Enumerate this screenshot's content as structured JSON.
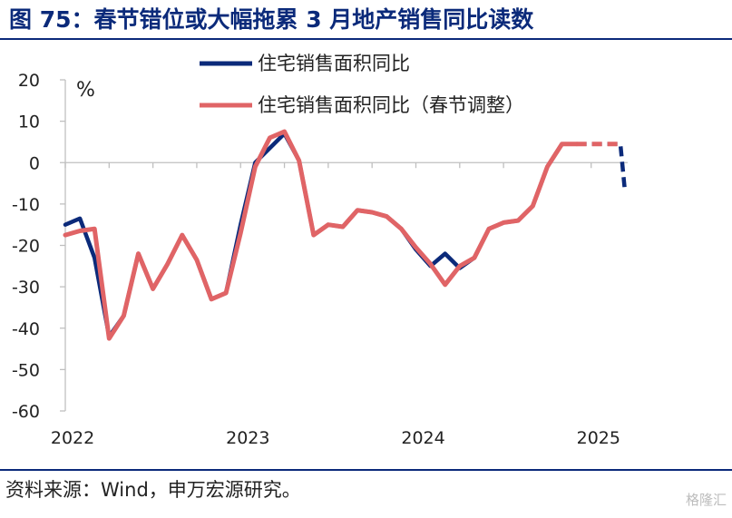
{
  "title": "图 75：春节错位或大幅拖累 3 月地产销售同比读数",
  "source": "资料来源：Wind，申万宏源研究。",
  "watermark": "格隆汇",
  "colors": {
    "title": "#0b2a7a",
    "series_raw": "#0b2a7a",
    "series_adjusted": "#e06466"
  },
  "chart_data": {
    "type": "line",
    "ylabel": "%",
    "ylim": [
      -60,
      20
    ],
    "yticks": [
      20,
      10,
      0,
      -10,
      -20,
      -30,
      -40,
      -50,
      -60
    ],
    "xlim": [
      0,
      38.5
    ],
    "xtick_labels": [
      {
        "label": "2022",
        "x": 0.5
      },
      {
        "label": "2023",
        "x": 12.5
      },
      {
        "label": "2024",
        "x": 24.5
      },
      {
        "label": "2025",
        "x": 36.5
      }
    ],
    "legend": [
      "住宅销售面积同比",
      "住宅销售面积同比（春节调整）"
    ],
    "series": [
      {
        "name": "住宅销售面积同比",
        "values": [
          -15,
          -13.5,
          -23,
          -42,
          -37,
          -22,
          -30.5,
          -24.5,
          -17.5,
          -23.5,
          -33,
          -31.5,
          -15,
          0,
          3.5,
          7,
          0.5,
          -17.5,
          -15,
          -15.5,
          -11.5,
          -12,
          -13,
          -16,
          -21,
          -25,
          -22,
          -25.5,
          -23,
          -16,
          -14.5,
          -14,
          -10.5,
          -1,
          4.5,
          4.5,
          4.5,
          4.5,
          4.5
        ],
        "dashed_from": 35,
        "projection": {
          "x": 38.3,
          "y": -6.5
        }
      },
      {
        "name": "住宅销售面积同比（春节调整）",
        "values": [
          -17.5,
          -16.5,
          -16,
          -42.5,
          -37,
          -22,
          -30.5,
          -24.5,
          -17.5,
          -23.5,
          -33,
          -31.5,
          -17,
          -1,
          6,
          7.5,
          0.5,
          -17.5,
          -15,
          -15.5,
          -11.5,
          -12,
          -13,
          -16,
          -20.5,
          -24.5,
          -29.5,
          -25,
          -23,
          -16,
          -14.5,
          -14,
          -10.5,
          -1,
          4.5,
          4.5,
          4.5,
          4.5,
          4.5
        ],
        "dashed_from": 35
      }
    ]
  }
}
